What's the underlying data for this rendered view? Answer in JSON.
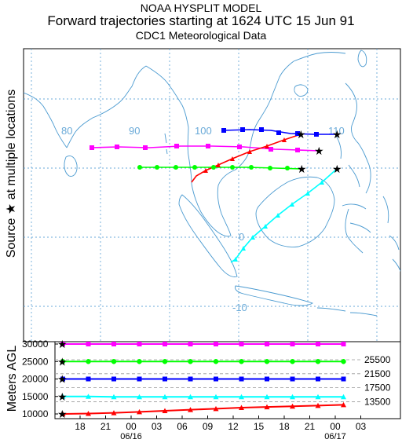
{
  "header": {
    "model": "NOAA HYSPLIT MODEL",
    "title": "Forward trajectories starting at 1624 UTC 15 Jun 91",
    "subtitle": "CDC1 Meteorological Data"
  },
  "map": {
    "side_label": "Source ★ at multiple locations",
    "lon_labels": [
      "80",
      "90",
      "100",
      "110"
    ],
    "lat_labels": [
      "0",
      "-10"
    ]
  },
  "height_panel": {
    "ylabel": "Meters AGL",
    "y_ticks": [
      "30000",
      "25000",
      "20000",
      "15000",
      "10000"
    ],
    "right_labels": [
      "25500",
      "21500",
      "17500",
      "13500"
    ],
    "time_ticks": [
      "18",
      "21",
      "00",
      "03",
      "06",
      "09",
      "12",
      "15",
      "18",
      "21",
      "00",
      "03"
    ],
    "dates": [
      "06/16",
      "06/17"
    ]
  },
  "colors": {
    "map_line": "#4a9ad0",
    "grid": "#6aaad8",
    "red": "#ff0000",
    "blue": "#0000ff",
    "magenta": "#ff00ff",
    "green": "#00ff00",
    "cyan": "#00ffff"
  },
  "chart_data": {
    "type": "line",
    "title": "Forward trajectories starting at 1624 UTC 15 Jun 91",
    "ylabel": "Meters AGL",
    "time_unit": "hours after start",
    "series": [
      {
        "color": "red",
        "marker": "triangle",
        "start_height_m": 10000,
        "heights_m": [
          10000,
          10100,
          10300,
          10600,
          10900,
          11200,
          11500,
          11800,
          12000,
          12200,
          12400,
          12600
        ]
      },
      {
        "color": "cyan",
        "marker": "triangle",
        "start_height_m": 15000,
        "heights_m": [
          15000,
          15000,
          14900,
          14900,
          14900,
          14900,
          14900,
          14900,
          14900,
          14900,
          14900,
          14900
        ]
      },
      {
        "color": "blue",
        "marker": "square",
        "start_height_m": 20000,
        "heights_m": [
          20000,
          20000,
          20000,
          20000,
          20000,
          20000,
          20000,
          20000,
          20000,
          20000,
          20000,
          20000
        ]
      },
      {
        "color": "green",
        "marker": "circle",
        "start_height_m": 25000,
        "heights_m": [
          25000,
          25000,
          25000,
          25000,
          25000,
          25000,
          25000,
          25000,
          25000,
          25000,
          25000,
          25000
        ]
      },
      {
        "color": "magenta",
        "marker": "square",
        "start_height_m": 30000,
        "heights_m": [
          30000,
          30000,
          30000,
          30000,
          30000,
          30000,
          30000,
          30000,
          30000,
          30000,
          30000,
          30000
        ]
      }
    ]
  }
}
